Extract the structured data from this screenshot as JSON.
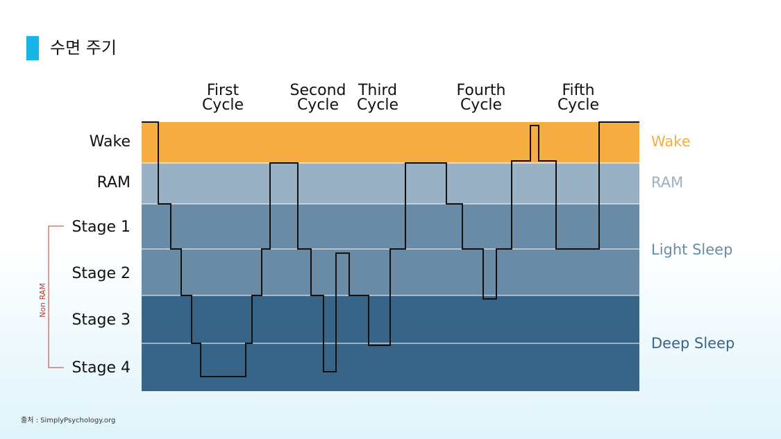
{
  "title": "수면 주기",
  "cycles": [
    [
      "First",
      "Cycle"
    ],
    [
      "Second",
      "Cycle"
    ],
    [
      "Third",
      "Cycle"
    ],
    [
      "Fourth",
      "Cycle"
    ],
    [
      "Fifth",
      "Cycle"
    ]
  ],
  "stages": [
    "Wake",
    "RAM",
    "Stage 1",
    "Stage 2",
    "Stage 3",
    "Stage 4"
  ],
  "groups": [
    "Wake",
    "RAM",
    "Light Sleep",
    "Deep Sleep"
  ],
  "bracket": "Non RAM",
  "source": "출처 : SimplyPsychology.org"
}
